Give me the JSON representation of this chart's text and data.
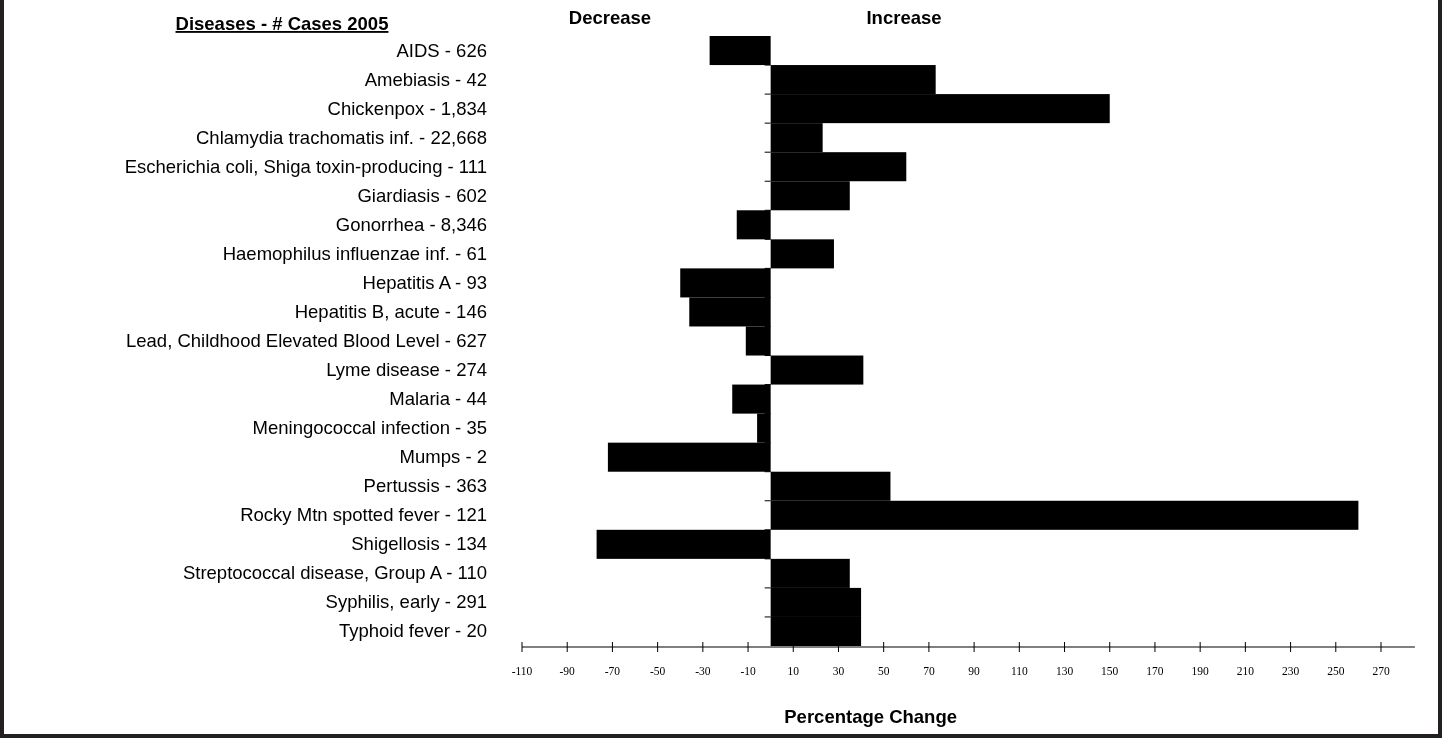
{
  "chart_data": {
    "type": "bar",
    "orientation": "horizontal",
    "ylabel": "Diseases - # Cases 2005",
    "xlabel": "Percentage Change",
    "annotations": [
      "Decrease",
      "Increase"
    ],
    "categories": [
      "AIDS - 626",
      "Amebiasis - 42",
      "Chickenpox - 1,834",
      "Chlamydia trachomatis inf. - 22,668",
      "Escherichia coli, Shiga toxin-producing  - 111",
      "Giardiasis - 602",
      "Gonorrhea - 8,346",
      "Haemophilus influenzae inf. - 61",
      "Hepatitis A  - 93",
      "Hepatitis B, acute - 146",
      "Lead, Childhood Elevated Blood Level - 627",
      "Lyme disease - 274",
      "Malaria - 44",
      "Meningococcal infection - 35",
      "Mumps - 2",
      "Pertussis - 363",
      "Rocky Mtn spotted fever - 121",
      "Shigellosis - 134",
      "Streptococcal disease, Group A - 110",
      "Syphilis, early - 291",
      "Typhoid fever - 20"
    ],
    "values": [
      -27,
      73,
      150,
      23,
      60,
      35,
      -15,
      28,
      -40,
      -36,
      -11,
      41,
      -17,
      -6,
      -72,
      53,
      260,
      -77,
      35,
      40,
      40
    ],
    "color": "#000000",
    "xlim": [
      -110,
      285
    ],
    "xticks": [
      -110,
      -90,
      -70,
      -50,
      -30,
      -10,
      10,
      30,
      50,
      70,
      90,
      110,
      130,
      150,
      170,
      190,
      210,
      230,
      250,
      270
    ],
    "grid": false
  }
}
